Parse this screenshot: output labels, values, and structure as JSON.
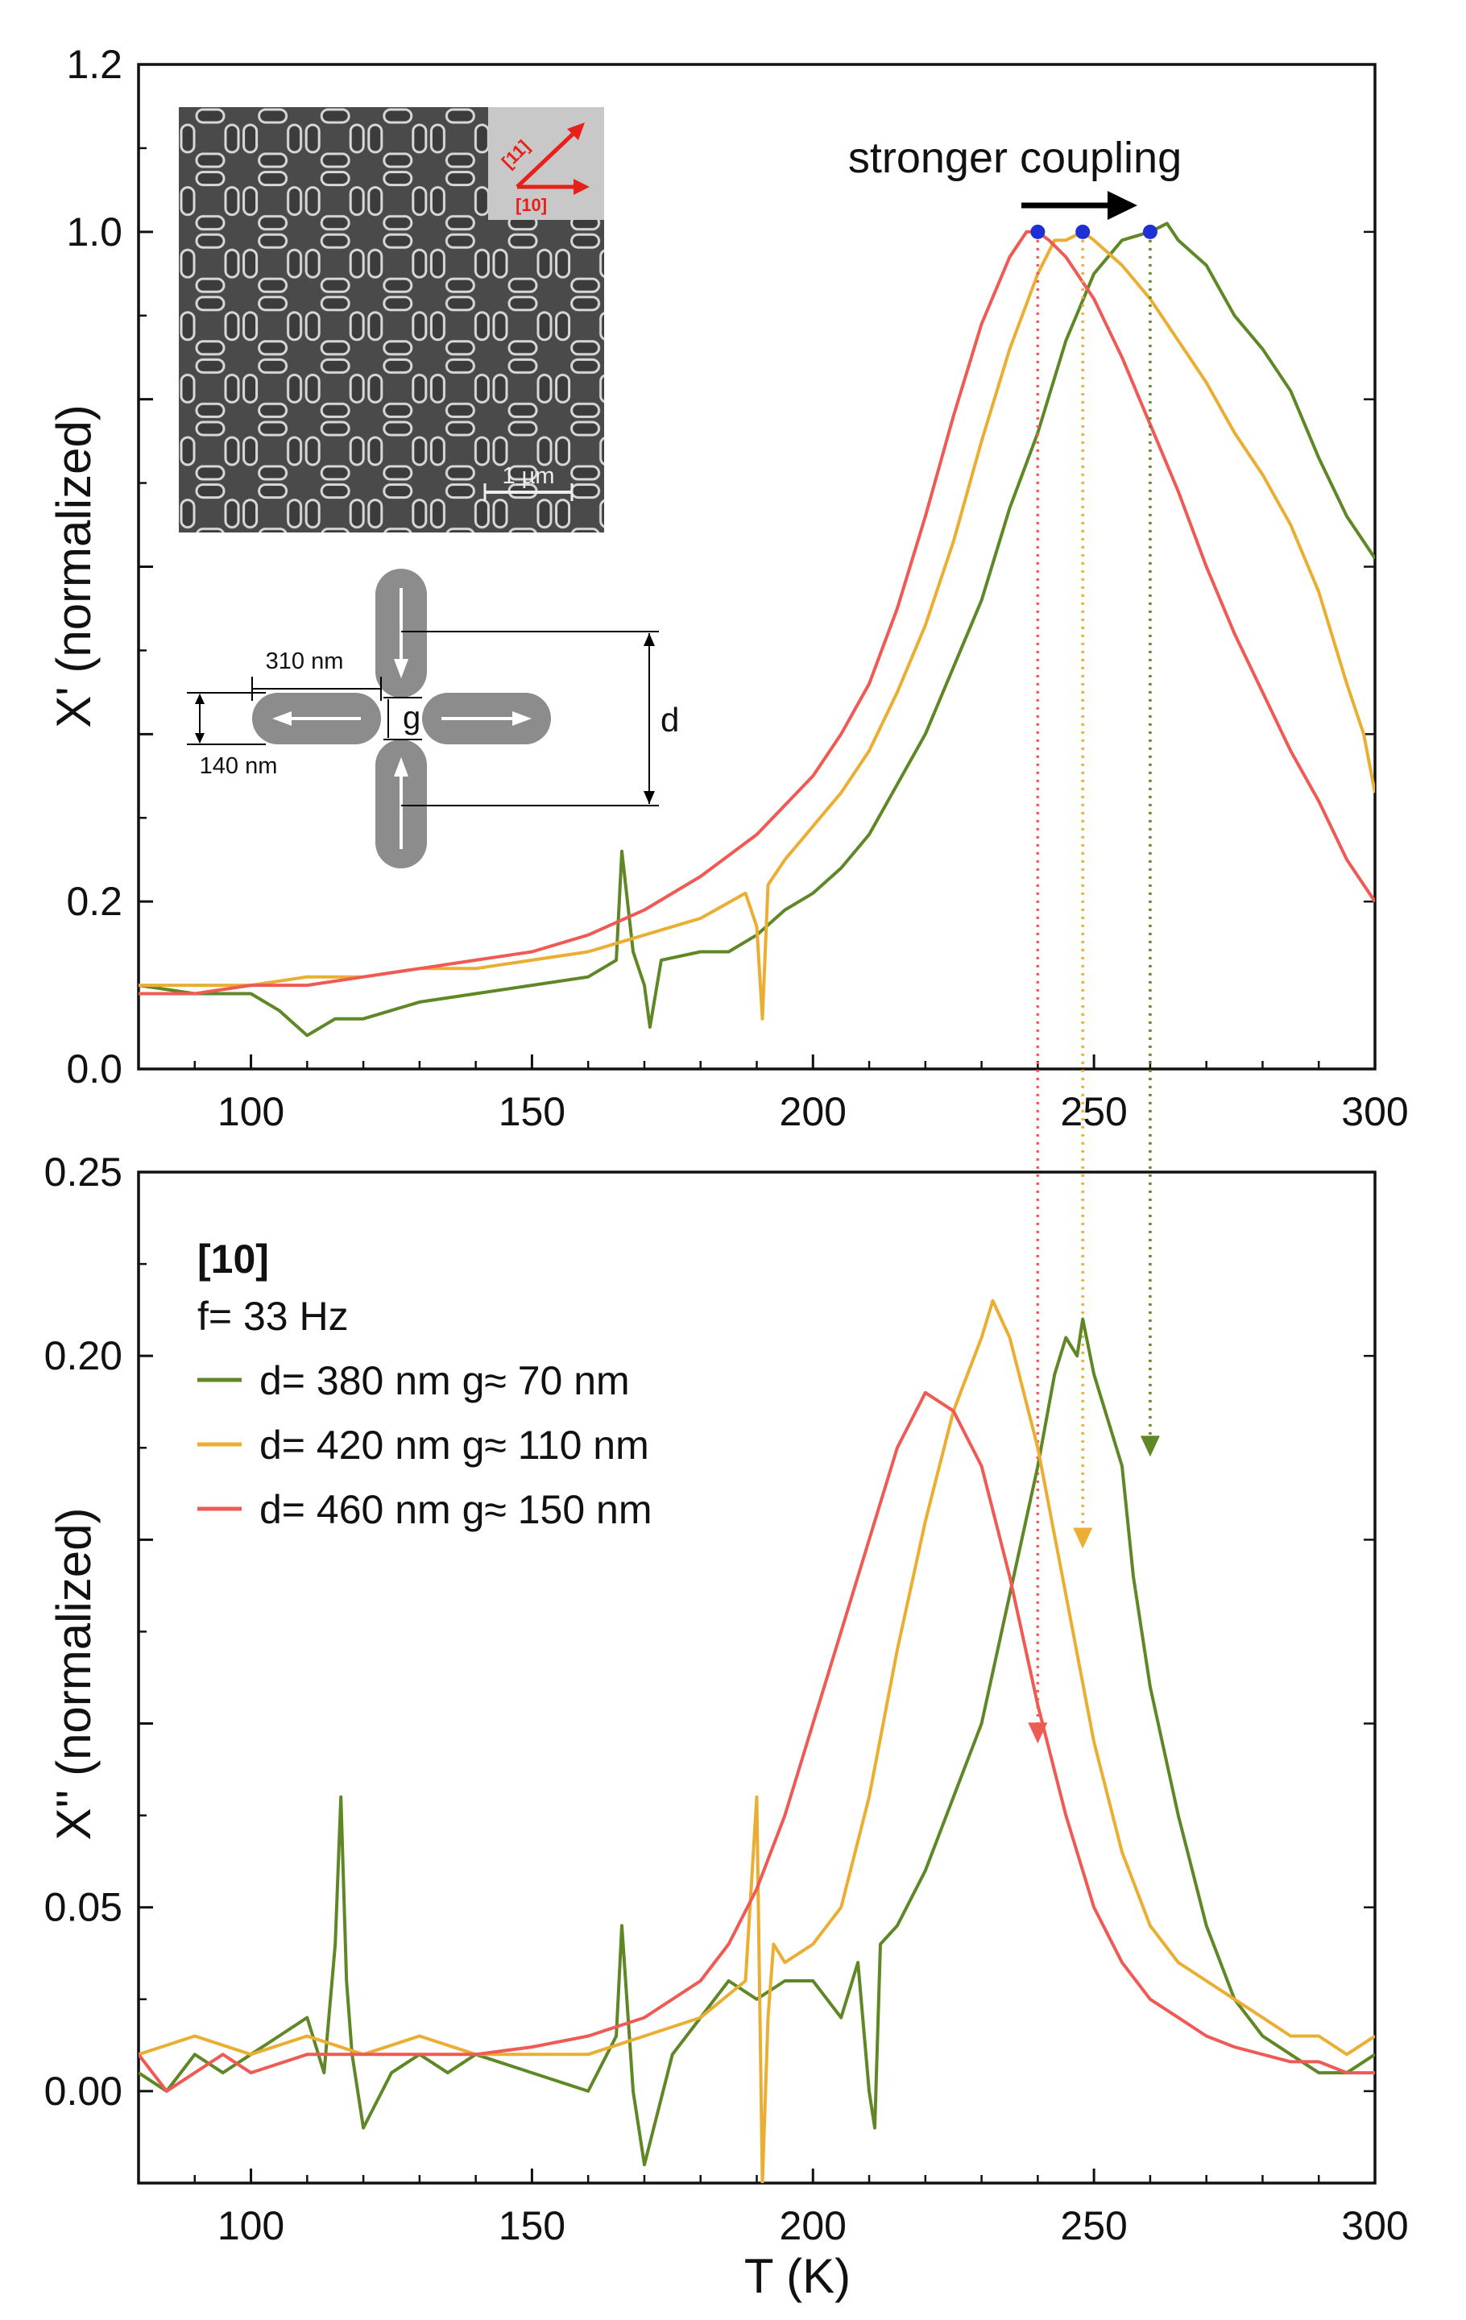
{
  "colors": {
    "green": "#5f8726",
    "yellow": "#eaae32",
    "red": "#ef5a55",
    "marker": "#1f2fd6",
    "inset_red": "#e8201a"
  },
  "annotation": {
    "text": "stronger coupling"
  },
  "sem_inset": {
    "scale_bar": "1 µm",
    "direction_11": "[11]",
    "direction_10": "[10]"
  },
  "schematic": {
    "length_label": "310 nm",
    "width_label": "140 nm",
    "gap_label": "g",
    "period_label": "d"
  },
  "legend": {
    "title": "[10]",
    "frequency": "f= 33 Hz",
    "entries": [
      {
        "label": "d= 380 nm g≈ 70 nm",
        "color": "#5f8726"
      },
      {
        "label": "d= 420 nm g≈ 110 nm",
        "color": "#eaae32"
      },
      {
        "label": "d= 460 nm g≈ 150 nm",
        "color": "#ef5a55"
      }
    ]
  },
  "chart_data": [
    {
      "type": "line",
      "xlabel": "",
      "ylabel": "X' (normalized)",
      "xlim": [
        80,
        300
      ],
      "ylim": [
        0.0,
        1.2
      ],
      "xticks": [
        100,
        150,
        200,
        250,
        300
      ],
      "yticks": [
        0.0,
        0.2,
        1.0,
        1.2
      ],
      "ytick_labels": [
        "0.0",
        "0.2",
        "1.0",
        "1.2"
      ],
      "yticks_unlabeled": [
        0.4,
        0.6,
        0.8
      ],
      "peak_markers": [
        {
          "x": 240,
          "y": 1.0
        },
        {
          "x": 248,
          "y": 1.0
        },
        {
          "x": 260,
          "y": 1.0
        }
      ],
      "series": [
        {
          "name": "d= 380 nm g≈ 70 nm",
          "color": "#5f8726",
          "x": [
            80,
            90,
            100,
            105,
            110,
            115,
            120,
            125,
            130,
            140,
            150,
            160,
            165,
            166,
            168,
            170,
            171,
            173,
            180,
            185,
            190,
            195,
            200,
            205,
            210,
            215,
            220,
            225,
            230,
            235,
            240,
            245,
            250,
            255,
            260,
            263,
            265,
            270,
            275,
            280,
            285,
            290,
            295,
            300
          ],
          "y": [
            0.1,
            0.09,
            0.09,
            0.07,
            0.04,
            0.06,
            0.06,
            0.07,
            0.08,
            0.09,
            0.1,
            0.11,
            0.13,
            0.26,
            0.14,
            0.1,
            0.05,
            0.13,
            0.14,
            0.14,
            0.16,
            0.19,
            0.21,
            0.24,
            0.28,
            0.34,
            0.4,
            0.48,
            0.56,
            0.67,
            0.76,
            0.87,
            0.95,
            0.99,
            1.0,
            1.01,
            0.99,
            0.96,
            0.9,
            0.86,
            0.81,
            0.73,
            0.66,
            0.61
          ]
        },
        {
          "name": "d= 420 nm g≈ 110 nm",
          "color": "#eaae32",
          "x": [
            80,
            90,
            100,
            110,
            120,
            130,
            140,
            150,
            160,
            170,
            180,
            188,
            190,
            191,
            192,
            195,
            200,
            205,
            210,
            215,
            220,
            225,
            230,
            235,
            240,
            243,
            245,
            248,
            250,
            255,
            260,
            265,
            270,
            275,
            280,
            285,
            290,
            295,
            298,
            300
          ],
          "y": [
            0.1,
            0.1,
            0.1,
            0.11,
            0.11,
            0.12,
            0.12,
            0.13,
            0.14,
            0.16,
            0.18,
            0.21,
            0.17,
            0.06,
            0.22,
            0.25,
            0.29,
            0.33,
            0.38,
            0.45,
            0.53,
            0.63,
            0.75,
            0.86,
            0.95,
            0.99,
            0.99,
            1.0,
            0.99,
            0.96,
            0.92,
            0.87,
            0.82,
            0.76,
            0.71,
            0.65,
            0.57,
            0.46,
            0.4,
            0.33
          ]
        },
        {
          "name": "d= 460 nm g≈ 150 nm",
          "color": "#ef5a55",
          "x": [
            80,
            90,
            100,
            110,
            120,
            130,
            140,
            150,
            160,
            170,
            180,
            190,
            200,
            205,
            210,
            215,
            220,
            225,
            230,
            235,
            238,
            240,
            242,
            245,
            250,
            255,
            260,
            265,
            270,
            275,
            280,
            285,
            290,
            295,
            300
          ],
          "y": [
            0.09,
            0.09,
            0.1,
            0.1,
            0.11,
            0.12,
            0.13,
            0.14,
            0.16,
            0.19,
            0.23,
            0.28,
            0.35,
            0.4,
            0.46,
            0.55,
            0.66,
            0.78,
            0.89,
            0.97,
            1.0,
            1.0,
            0.99,
            0.97,
            0.92,
            0.85,
            0.77,
            0.69,
            0.6,
            0.52,
            0.45,
            0.38,
            0.32,
            0.25,
            0.2
          ]
        }
      ]
    },
    {
      "type": "line",
      "xlabel": "T (K)",
      "ylabel": "X'' (normalized)",
      "xlim": [
        80,
        300
      ],
      "ylim": [
        -0.025,
        0.25
      ],
      "xticks": [
        100,
        150,
        200,
        250,
        300
      ],
      "yticks": [
        0.0,
        0.05,
        0.2,
        0.25
      ],
      "ytick_labels": [
        "0.00",
        "0.05",
        "0.20",
        "0.25"
      ],
      "yticks_unlabeled": [
        0.1,
        0.15
      ],
      "series": [
        {
          "name": "d= 380 nm g≈ 70 nm",
          "color": "#5f8726",
          "x": [
            80,
            85,
            90,
            95,
            100,
            105,
            110,
            113,
            115,
            116,
            117,
            118,
            120,
            125,
            130,
            135,
            140,
            150,
            160,
            165,
            166,
            168,
            170,
            175,
            180,
            185,
            190,
            195,
            200,
            205,
            208,
            210,
            211,
            212,
            215,
            220,
            225,
            230,
            235,
            240,
            243,
            245,
            247,
            248,
            250,
            255,
            257,
            260,
            265,
            270,
            275,
            280,
            285,
            290,
            295,
            300
          ],
          "y": [
            0.005,
            0.0,
            0.01,
            0.005,
            0.01,
            0.015,
            0.02,
            0.005,
            0.04,
            0.08,
            0.03,
            0.01,
            -0.01,
            0.005,
            0.01,
            0.005,
            0.01,
            0.005,
            0.0,
            0.015,
            0.045,
            0.0,
            -0.02,
            0.01,
            0.02,
            0.03,
            0.025,
            0.03,
            0.03,
            0.02,
            0.035,
            0.0,
            -0.01,
            0.04,
            0.045,
            0.06,
            0.08,
            0.1,
            0.135,
            0.17,
            0.195,
            0.205,
            0.2,
            0.21,
            0.195,
            0.17,
            0.14,
            0.11,
            0.075,
            0.045,
            0.025,
            0.015,
            0.01,
            0.005,
            0.005,
            0.01
          ]
        },
        {
          "name": "d= 420 nm g≈ 110 nm",
          "color": "#eaae32",
          "x": [
            80,
            90,
            100,
            110,
            120,
            130,
            140,
            150,
            160,
            170,
            180,
            188,
            190,
            191,
            192,
            193,
            195,
            200,
            205,
            210,
            215,
            220,
            225,
            230,
            232,
            235,
            240,
            245,
            250,
            255,
            260,
            265,
            270,
            275,
            280,
            285,
            290,
            295,
            300
          ],
          "y": [
            0.01,
            0.015,
            0.01,
            0.015,
            0.01,
            0.015,
            0.01,
            0.01,
            0.01,
            0.015,
            0.02,
            0.03,
            0.08,
            -0.025,
            0.02,
            0.04,
            0.035,
            0.04,
            0.05,
            0.08,
            0.12,
            0.155,
            0.185,
            0.205,
            0.215,
            0.205,
            0.175,
            0.135,
            0.095,
            0.065,
            0.045,
            0.035,
            0.03,
            0.025,
            0.02,
            0.015,
            0.015,
            0.01,
            0.015
          ]
        },
        {
          "name": "d= 460 nm g≈ 150 nm",
          "color": "#ef5a55",
          "x": [
            80,
            85,
            90,
            95,
            100,
            110,
            120,
            130,
            140,
            150,
            160,
            170,
            180,
            185,
            190,
            195,
            200,
            205,
            210,
            215,
            220,
            225,
            230,
            235,
            240,
            245,
            250,
            255,
            260,
            265,
            270,
            275,
            280,
            285,
            290,
            295,
            300
          ],
          "y": [
            0.01,
            0.0,
            0.005,
            0.01,
            0.005,
            0.01,
            0.01,
            0.01,
            0.01,
            0.012,
            0.015,
            0.02,
            0.03,
            0.04,
            0.055,
            0.075,
            0.1,
            0.125,
            0.15,
            0.175,
            0.19,
            0.185,
            0.17,
            0.14,
            0.105,
            0.075,
            0.05,
            0.035,
            0.025,
            0.02,
            0.015,
            0.012,
            0.01,
            0.008,
            0.008,
            0.005,
            0.005
          ]
        }
      ]
    }
  ]
}
